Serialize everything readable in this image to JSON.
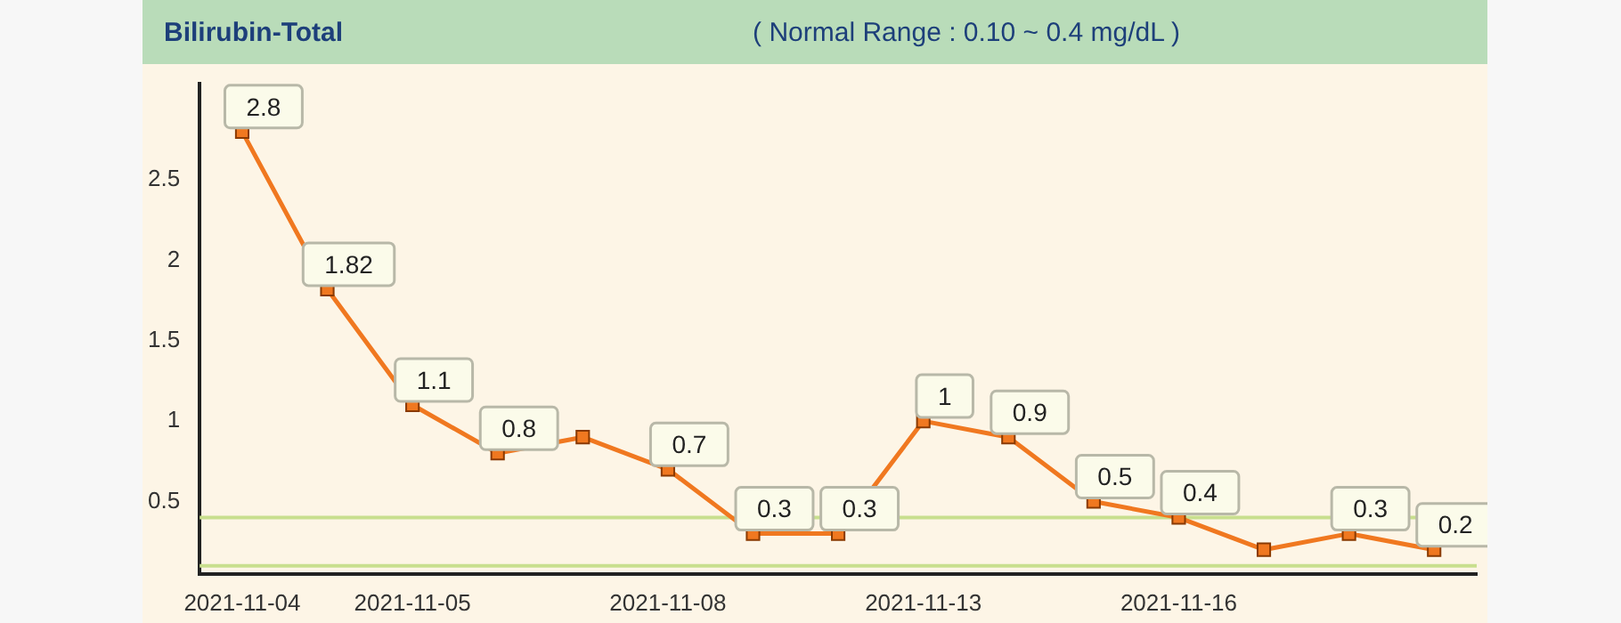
{
  "chart_data": {
    "type": "line",
    "title": "Bilirubin-Total",
    "subtitle": "( Normal Range : 0.10 ~ 0.4 mg/dL )",
    "categories": [
      "2021-11-04",
      null,
      "2021-11-05",
      null,
      null,
      "2021-11-08",
      null,
      null,
      "2021-11-13",
      null,
      null,
      "2021-11-16",
      null,
      null,
      null
    ],
    "series": [
      {
        "color": "#f07820",
        "values": [
          2.8,
          1.82,
          1.1,
          0.8,
          0.9,
          0.7,
          0.3,
          0.3,
          1,
          0.9,
          0.5,
          0.4,
          0.2,
          0.3,
          0.2
        ],
        "value_labels": [
          "2.8",
          "1.82",
          "1.1",
          "0.8",
          null,
          "0.7",
          "0.3",
          "0.3",
          "1",
          "0.9",
          "0.5",
          "0.4",
          null,
          "0.3",
          "0.2"
        ]
      }
    ],
    "ylim": [
      0.05,
      3.1
    ],
    "yticks": [
      0.5,
      1,
      1.5,
      2,
      2.5
    ],
    "ref_lines": [
      {
        "axis": "y",
        "value": 0.4,
        "color": "#c8df8e"
      },
      {
        "axis": "y",
        "value": 0.1,
        "color": "#c8df8e"
      }
    ],
    "grid": false,
    "legend": false,
    "marker": "square",
    "line_style": "solid"
  }
}
